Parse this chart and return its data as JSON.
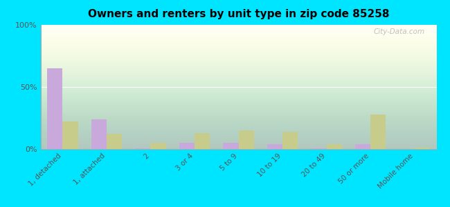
{
  "title": "Owners and renters by unit type in zip code 85258",
  "categories": [
    "1, detached",
    "1, attached",
    "2",
    "3 or 4",
    "5 to 9",
    "10 to 19",
    "20 to 49",
    "50 or more",
    "Mobile home"
  ],
  "owner_values": [
    65,
    24,
    0.5,
    5,
    5,
    4,
    0.5,
    4,
    0
  ],
  "renter_values": [
    22,
    12,
    5,
    13,
    15,
    14,
    4,
    28,
    1
  ],
  "owner_color": "#c9a8dc",
  "renter_color": "#c8cc8a",
  "ylim": [
    0,
    100
  ],
  "yticks": [
    0,
    50,
    100
  ],
  "ytick_labels": [
    "0%",
    "50%",
    "100%"
  ],
  "outer_bg": "#00e5ff",
  "bar_width": 0.35
}
